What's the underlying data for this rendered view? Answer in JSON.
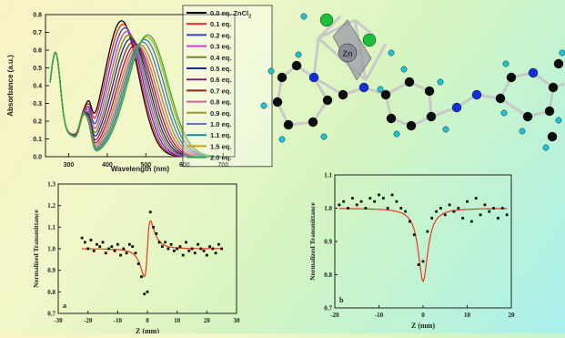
{
  "chart_data": [
    {
      "type": "line",
      "title": "",
      "xlabel": "Wavelength (nm)",
      "ylabel": "Absorbance (a.u.)",
      "xlim": [
        240,
        730
      ],
      "ylim": [
        0.0,
        0.8
      ],
      "xticks": [
        300,
        400,
        500,
        600,
        700
      ],
      "yticks": [
        0.0,
        0.1,
        0.2,
        0.3,
        0.4,
        0.5,
        0.6,
        0.7,
        0.8
      ],
      "legend_placement": "right",
      "legend_title": "",
      "series": [
        {
          "name": "0.0 eq. ZnCl",
          "name_sub": "2",
          "color": "#000000",
          "peak_nm": 437,
          "peak_abs": 0.765
        },
        {
          "name": "0.1 eq.",
          "color": "#e8232b",
          "peak_nm": 441,
          "peak_abs": 0.745
        },
        {
          "name": "0.2 eq.",
          "color": "#2d46d6",
          "peak_nm": 446,
          "peak_abs": 0.725
        },
        {
          "name": "0.3 eq.",
          "color": "#d63bd6",
          "peak_nm": 451,
          "peak_abs": 0.705
        },
        {
          "name": "0.4 eq.",
          "color": "#6b8a1a",
          "peak_nm": 456,
          "peak_abs": 0.685
        },
        {
          "name": "0.5 eq.",
          "color": "#1c2c96",
          "peak_nm": 461,
          "peak_abs": 0.665
        },
        {
          "name": "0.6 eq.",
          "color": "#8a1a8a",
          "peak_nm": 467,
          "peak_abs": 0.645
        },
        {
          "name": "0.7 eq.",
          "color": "#8a2b1a",
          "peak_nm": 473,
          "peak_abs": 0.63
        },
        {
          "name": "0.8 eq.",
          "color": "#e05aa8",
          "peak_nm": 479,
          "peak_abs": 0.625
        },
        {
          "name": "0.9 eq.",
          "color": "#9a9a1a",
          "peak_nm": 485,
          "peak_abs": 0.63
        },
        {
          "name": "1.0 eq.",
          "color": "#6a6ad6",
          "peak_nm": 491,
          "peak_abs": 0.645
        },
        {
          "name": "1.1 eq.",
          "color": "#1a8aa8",
          "peak_nm": 497,
          "peak_abs": 0.66
        },
        {
          "name": "1.5 eq.",
          "color": "#c8a01a",
          "peak_nm": 502,
          "peak_abs": 0.675
        },
        {
          "name": "2.0 eq.",
          "color": "#22b04a",
          "peak_nm": 505,
          "peak_abs": 0.685
        }
      ]
    },
    {
      "type": "scatter",
      "panel_label": "a",
      "xlabel": "Z (mm)",
      "ylabel": "Normalized Transmittance",
      "xlim": [
        -30,
        30
      ],
      "ylim": [
        0.7,
        1.3
      ],
      "xticks": [
        -30,
        -20,
        -10,
        0,
        10,
        20,
        30
      ],
      "yticks": [
        0.7,
        0.8,
        0.9,
        1.0,
        1.1,
        1.2,
        1.3
      ],
      "points_x": [
        -22,
        -21,
        -20,
        -19,
        -18,
        -17,
        -16,
        -15,
        -14,
        -13,
        -12,
        -11,
        -10,
        -9,
        -8,
        -7,
        -6,
        -5,
        -4,
        -3,
        -2,
        -1,
        0,
        1,
        2,
        3,
        4,
        5,
        6,
        7,
        8,
        9,
        10,
        11,
        12,
        13,
        14,
        15,
        16,
        17,
        18,
        19,
        20,
        21,
        22,
        23,
        24,
        25
      ],
      "points_y": [
        1.05,
        1.03,
        1.0,
        1.04,
        0.99,
        1.02,
        1.01,
        1.03,
        0.98,
        1.0,
        1.01,
        0.99,
        1.02,
        0.97,
        1.0,
        0.98,
        1.02,
        1.01,
        0.98,
        0.93,
        0.87,
        0.79,
        0.8,
        1.17,
        1.1,
        1.07,
        1.03,
        1.01,
        1.03,
        1.0,
        1.02,
        0.99,
        1.0,
        1.01,
        0.97,
        1.03,
        0.99,
        1.0,
        0.98,
        1.02,
        1.0,
        0.99,
        0.97,
        1.01,
        1.0,
        0.98,
        1.02,
        1.0
      ],
      "fit": "red line"
    },
    {
      "type": "scatter",
      "panel_label": "b",
      "xlabel": "Z (mm)",
      "ylabel": "Normalized Transmittance",
      "xlim": [
        -20,
        20
      ],
      "ylim": [
        0.7,
        1.1
      ],
      "xticks": [
        -20,
        -10,
        0,
        10,
        20
      ],
      "yticks": [
        0.7,
        0.8,
        0.9,
        1.0,
        1.1
      ],
      "points_x": [
        -19,
        -18,
        -17,
        -16,
        -15,
        -14,
        -13,
        -12,
        -11,
        -10,
        -9,
        -8,
        -7,
        -6,
        -5,
        -4,
        -3,
        -2,
        -1,
        0,
        1,
        2,
        3,
        4,
        5,
        6,
        7,
        8,
        9,
        10,
        11,
        12,
        13,
        14,
        15,
        16,
        17,
        18,
        19
      ],
      "points_y": [
        1.01,
        1.02,
        1.0,
        1.03,
        1.01,
        1.02,
        1.0,
        1.03,
        1.02,
        1.04,
        1.03,
        1.0,
        1.04,
        1.02,
        1.0,
        0.99,
        0.96,
        0.92,
        0.83,
        0.84,
        0.93,
        0.97,
        0.99,
        1.0,
        0.98,
        1.01,
        0.99,
        1.0,
        0.97,
        1.02,
        0.96,
        1.03,
        0.98,
        1.01,
        0.99,
        1.0,
        0.97,
        1.0,
        0.98
      ],
      "fit": "red line"
    }
  ],
  "molecule": {
    "zn_label": "Zn",
    "atom_colors": {
      "carbon": "#0c0c0c",
      "hydrogen": "#1fc3d4",
      "nitrogen": "#1330d8",
      "chlorine": "#1cbf3a",
      "zinc": "#8b8b9a"
    }
  }
}
